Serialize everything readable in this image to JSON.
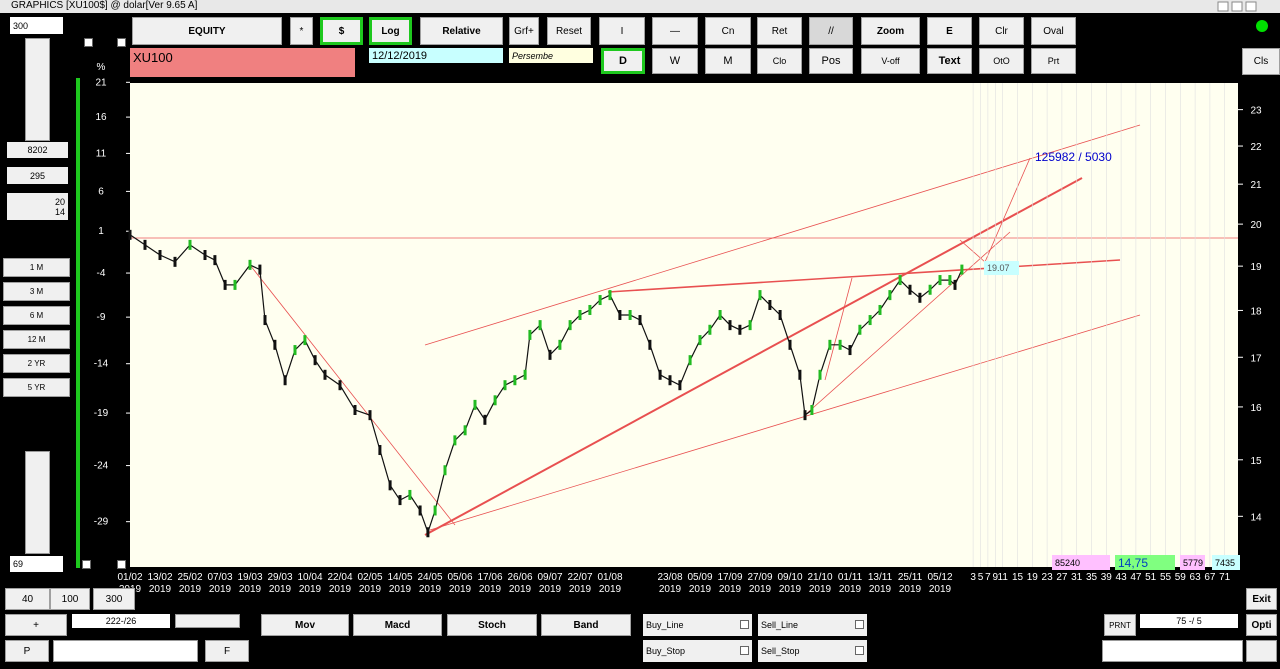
{
  "window": {
    "title": "GRAPHICS  [XU100$] @ dolar[Ver 9.65 A]"
  },
  "toolbar": {
    "row1": [
      "EQUITY",
      "*",
      "$",
      "Log",
      "Relative",
      "Grf+",
      "Reset",
      "I",
      "—",
      "Cn",
      "Ret",
      "//",
      "Zoom",
      "E",
      "Clr",
      "Oval"
    ],
    "row2": [
      "D",
      "W",
      "M",
      "Clo",
      "Pos",
      "V-off",
      "Text",
      "OtO",
      "Prt"
    ],
    "cls": "Cls",
    "symbol": "XU100",
    "date": "12/12/2019",
    "day": "Persembe"
  },
  "left_panel": {
    "top_value": "300",
    "value1": "8202",
    "value2": "295",
    "value3": [
      "20",
      "14"
    ],
    "periods": [
      "1 M",
      "3 M",
      "6 M",
      "12 M",
      "2 YR",
      "5 YR"
    ],
    "bottom_value": "69"
  },
  "chart": {
    "pct_label": "%",
    "pct_ticks": [
      21,
      16,
      11,
      6,
      1,
      -4,
      -9,
      -14,
      -19,
      -24,
      -29
    ],
    "pct_lim": [
      -32.8,
      20.9
    ],
    "price_ticks": [
      23,
      22,
      21,
      20,
      19,
      18,
      17,
      16,
      15,
      14
    ],
    "price_lim": [
      13.16,
      23.76
    ],
    "log": true,
    "dates": [
      [
        "01/02",
        "2019"
      ],
      [
        "13/02",
        "2019"
      ],
      [
        "25/02",
        "2019"
      ],
      [
        "07/03",
        "2019"
      ],
      [
        "19/03",
        "2019"
      ],
      [
        "29/03",
        "2019"
      ],
      [
        "10/04",
        "2019"
      ],
      [
        "22/04",
        "2019"
      ],
      [
        "02/05",
        "2019"
      ],
      [
        "14/05",
        "2019"
      ],
      [
        "24/05",
        "2019"
      ],
      [
        "05/06",
        "2019"
      ],
      [
        "17/06",
        "2019"
      ],
      [
        "26/06",
        "2019"
      ],
      [
        "09/07",
        "2019"
      ],
      [
        "22/07",
        "2019"
      ],
      [
        "01/08",
        "2019"
      ],
      null,
      [
        "23/08",
        "2019"
      ],
      [
        "05/09",
        "2019"
      ],
      [
        "17/09",
        "2019"
      ],
      [
        "27/09",
        "2019"
      ],
      [
        "09/10",
        "2019"
      ],
      [
        "21/10",
        "2019"
      ],
      [
        "01/11",
        "2019"
      ],
      [
        "13/11",
        "2019"
      ],
      [
        "25/11",
        "2019"
      ],
      [
        "05/12",
        "2019"
      ]
    ],
    "future_days": [
      3,
      5,
      7,
      9,
      11,
      15,
      19,
      23,
      27,
      31,
      35,
      39,
      43,
      47,
      51,
      55,
      59,
      63,
      67,
      71
    ],
    "x": [
      0,
      0.5,
      1,
      1.5,
      2,
      2.5,
      2.83,
      3.17,
      3.5,
      4,
      4.33,
      4.5,
      4.83,
      5.17,
      5.5,
      5.83,
      6.17,
      6.5,
      7,
      7.5,
      8,
      8.33,
      8.67,
      9,
      9.33,
      9.67,
      9.93,
      10.17,
      10.5,
      10.83,
      11.17,
      11.5,
      11.83,
      12.17,
      12.5,
      12.83,
      13.17,
      13.33,
      13.67,
      14,
      14.33,
      14.67,
      15,
      15.33,
      15.67,
      16,
      16.33,
      16.67,
      17,
      17.33,
      17.67,
      18,
      18.33,
      18.67,
      19,
      19.33,
      19.67,
      20,
      20.33,
      20.67,
      21,
      21.33,
      21.67,
      22,
      22.33,
      22.5,
      22.73,
      23,
      23.33,
      23.67,
      24,
      24.33,
      24.67,
      25,
      25.33,
      25.67,
      26,
      26.33,
      26.67,
      27,
      27.33,
      27.5,
      27.73
    ],
    "closes": [
      19.74,
      19.5,
      19.26,
      19.1,
      19.5,
      19.26,
      19.14,
      18.57,
      18.57,
      19.03,
      18.92,
      17.79,
      17.26,
      16.53,
      17.15,
      17.36,
      16.94,
      16.64,
      16.43,
      15.94,
      15.84,
      15.18,
      14.54,
      14.28,
      14.37,
      14.1,
      13.73,
      14.1,
      14.81,
      15.36,
      15.55,
      16.04,
      15.75,
      16.13,
      16.43,
      16.53,
      16.64,
      17.47,
      17.68,
      17.05,
      17.26,
      17.68,
      17.9,
      18.01,
      18.23,
      18.34,
      17.9,
      17.9,
      17.79,
      17.26,
      16.64,
      16.53,
      16.43,
      16.94,
      17.36,
      17.58,
      17.9,
      17.68,
      17.58,
      17.68,
      18.34,
      18.12,
      17.9,
      17.26,
      16.64,
      15.84,
      15.94,
      16.64,
      17.26,
      17.26,
      17.15,
      17.58,
      17.79,
      18.01,
      18.34,
      18.68,
      18.46,
      18.28,
      18.46,
      18.68,
      18.68,
      18.57,
      18.92
    ],
    "target_label": "125982 / 5030",
    "last_label": "19.07",
    "stats": [
      "85240",
      "14,75",
      "5779",
      "7435"
    ]
  },
  "bottom": {
    "zoom": [
      "40",
      "100",
      "300"
    ],
    "plus": "+",
    "range": "222-/26",
    "p": "P",
    "f": "F",
    "indicators": [
      "Mov",
      "Macd",
      "Stoch",
      "Band"
    ],
    "checks": [
      "Buy_Line",
      "Sell_Line",
      "Buy_Stop",
      "Sell_Stop"
    ],
    "prnt": "PRNT",
    "ratio": "75 -/ 5",
    "exit": "Exit",
    "opti": "Opti"
  }
}
